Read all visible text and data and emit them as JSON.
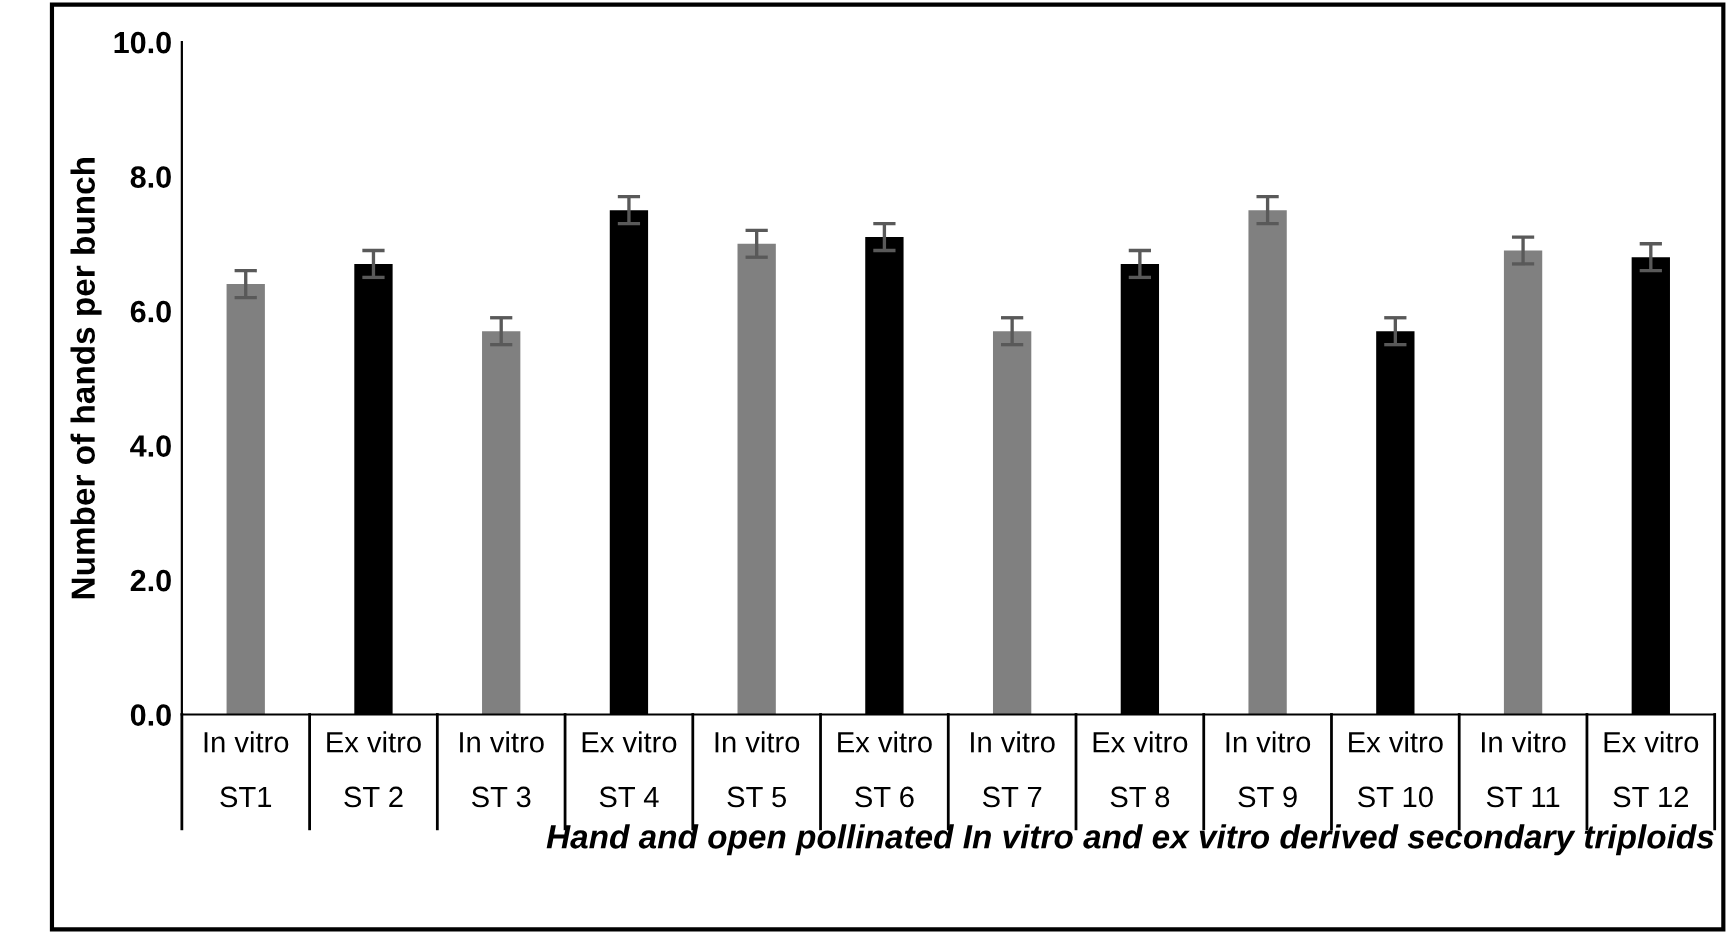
{
  "chart_data": {
    "type": "bar",
    "ylabel": "Number of hands per bunch",
    "xlabel": "Hand and open pollinated In vitro and ex vitro derived secondary triploids",
    "categories": [
      "In vitro\nST1",
      "Ex vitro\nST 2",
      "In vitro\nST 3",
      "Ex vitro\nST 4",
      "In vitro\nST 5",
      "Ex vitro\nST 6",
      "In vitro\nST 7",
      "Ex vitro\nST 8",
      "In vitro\nST 9",
      "Ex vitro\nST 10",
      "In vitro\nST 11",
      "Ex vitro\nST 12"
    ],
    "values": [
      6.4,
      6.7,
      5.7,
      7.5,
      7.0,
      7.1,
      5.7,
      6.7,
      7.5,
      5.7,
      6.9,
      6.8
    ],
    "errors": [
      0.2,
      0.2,
      0.2,
      0.2,
      0.2,
      0.2,
      0.2,
      0.2,
      0.2,
      0.2,
      0.2,
      0.2
    ],
    "colors": [
      "#808080",
      "#000000",
      "#808080",
      "#000000",
      "#808080",
      "#000000",
      "#808080",
      "#000000",
      "#808080",
      "#000000",
      "#808080",
      "#000000"
    ],
    "ylim": [
      0,
      10
    ],
    "yticks": [
      {
        "value": 0,
        "label": "0.0"
      },
      {
        "value": 2,
        "label": "2.0"
      },
      {
        "value": 4,
        "label": "4.0"
      },
      {
        "value": 6,
        "label": "6.0"
      },
      {
        "value": 8,
        "label": "8.0"
      },
      {
        "value": 10,
        "label": "10.0"
      }
    ],
    "grid": false,
    "legend": false
  }
}
